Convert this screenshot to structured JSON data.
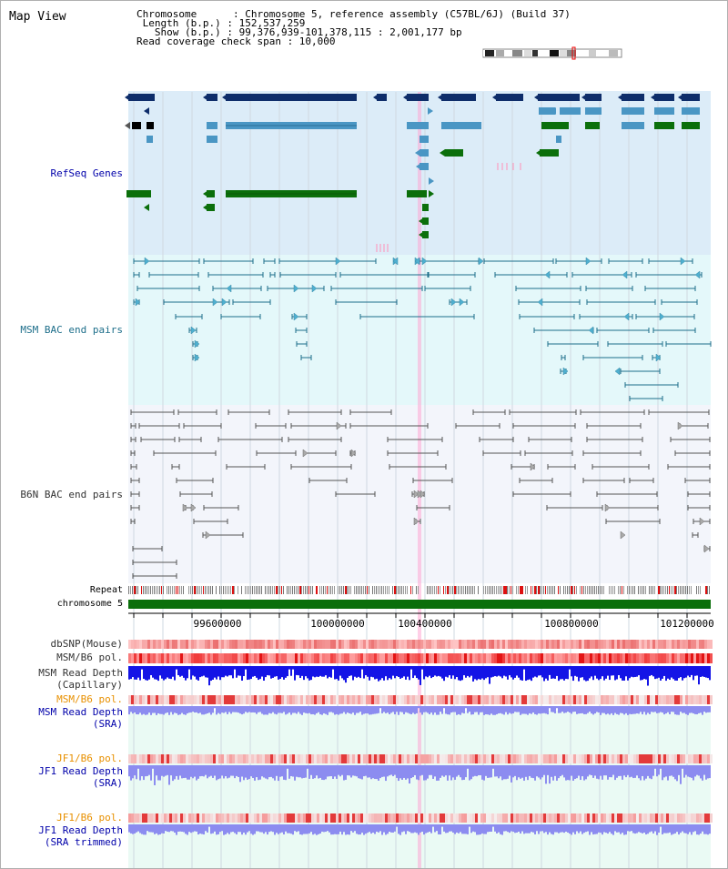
{
  "page": {
    "title": "Map View",
    "info_lines": [
      "Chromosome      : Chromosome 5, reference assembly (C57BL/6J) (Build 37)",
      " Length (b.p.) : 152,537,259",
      "   Show (b.p.) : 99,376,939-101,378,115 : 2,001,177 bp",
      "Read coverage check span : 10,000"
    ]
  },
  "tracks": {
    "refseq": "RefSeq Genes",
    "msm_bac": "MSM BAC end pairs",
    "b6n_bac": "B6N BAC end pairs",
    "repeat": "Repeat",
    "chromosome": "chromosome 5",
    "dbsnp": "dbSNP(Mouse)",
    "msm_b6_pol_1": "MSM/B6 pol.",
    "msm_read_depth_cap_1": "MSM Read Depth",
    "msm_read_depth_cap_2": "(Capillary)",
    "msm_b6_pol_2": "MSM/B6 pol.",
    "msm_read_depth_sra_1": "MSM Read Depth",
    "msm_read_depth_sra_2": "(SRA)",
    "jf1_b6_pol_1": "JF1/B6 pol.",
    "jf1_read_depth_sra_1": "JF1 Read Depth",
    "jf1_read_depth_sra_2": "(SRA)",
    "jf1_b6_pol_2": "JF1/B6 pol.",
    "jf1_read_depth_trim_1": "JF1 Read Depth",
    "jf1_read_depth_trim_2": "(SRA trimmed)"
  },
  "axis": {
    "ticks": [
      "99600000",
      "100000000",
      "100400000",
      "100800000",
      "101200000"
    ]
  },
  "colors": {
    "refseq_bg": "#dcecf8",
    "msm_bg": "#e4f8fa",
    "b6n_bg": "#f3f5fb",
    "lower_bg": "#eafaf4",
    "gene_dark": "#0e2d6a",
    "gene_mid": "#4a96c4",
    "gene_green": "#0b6f0b",
    "bac_teal": "#1d6e8a",
    "bac_gray": "#555555",
    "chromosome": "#0b6f0b",
    "read_depth_capillary": "#1414e6",
    "read_depth_sra": "#8c8cf0",
    "selection_line": "#ff9fcf"
  }
}
